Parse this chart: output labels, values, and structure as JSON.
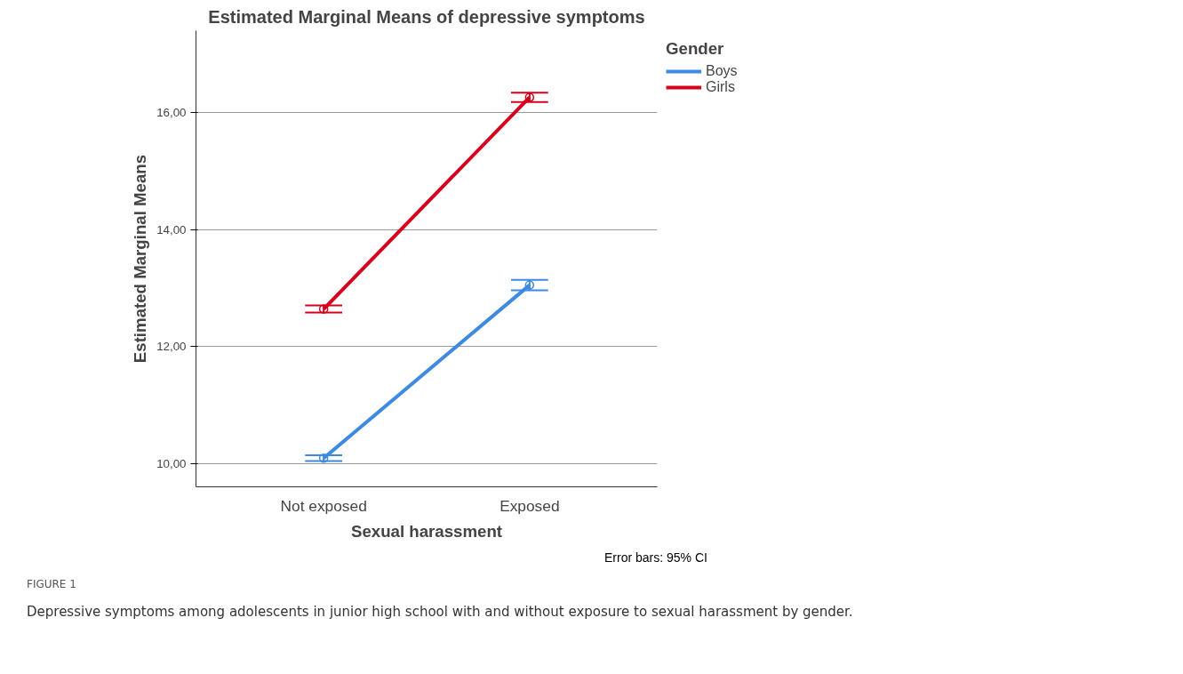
{
  "chart_data": {
    "type": "line",
    "title": "Estimated Marginal Means of depressive symptoms",
    "xlabel": "Sexual harassment",
    "ylabel": "Estimated Marginal Means",
    "legend_title": "Gender",
    "categories": [
      "Not exposed",
      "Exposed"
    ],
    "series": [
      {
        "name": "Boys",
        "color": "#3d8ae0",
        "values": [
          10.09,
          13.05
        ],
        "errors": [
          0.05,
          0.09
        ]
      },
      {
        "name": "Girls",
        "color": "#d6001c",
        "values": [
          12.64,
          16.26
        ],
        "errors": [
          0.06,
          0.08
        ]
      }
    ],
    "ylim": [
      9.6,
      17.4
    ],
    "yticks": [
      {
        "value": 10,
        "label": "10,00"
      },
      {
        "value": 12,
        "label": "12,00"
      },
      {
        "value": 14,
        "label": "14,00"
      },
      {
        "value": 16,
        "label": "16,00"
      }
    ],
    "grid": "y",
    "legend": "right",
    "marker": "circle",
    "line_style": "solid",
    "annotations": [
      "Error bars: 95% CI",
      "FIGURE 1",
      "Depressive symptoms among adolescents in junior high school with and without exposure to sexual harassment by gender."
    ]
  }
}
